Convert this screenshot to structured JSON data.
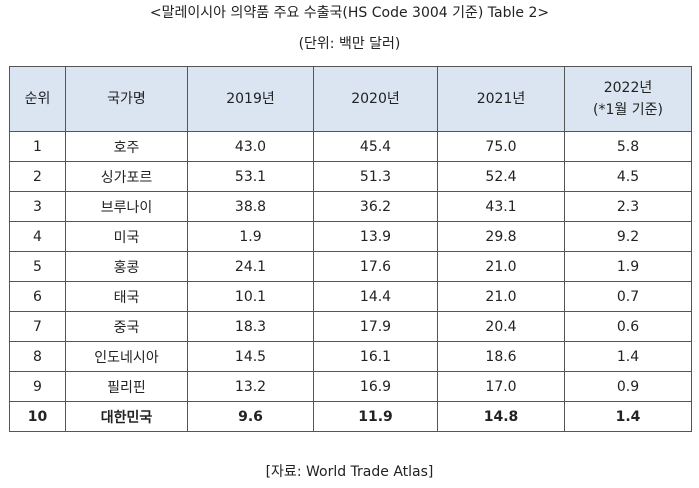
{
  "title": "<말레이시아 의약품 주요 수출국(HS Code 3004 기준) Table 2>",
  "unit": "(단위: 백만 달러)",
  "table": {
    "headers": {
      "rank": "순위",
      "country": "국가명",
      "y2019": "2019년",
      "y2020": "2020년",
      "y2021": "2021년",
      "y2022_line1": "2022년",
      "y2022_line2": "(*1월 기준)"
    },
    "rows": [
      {
        "rank": "1",
        "country": "호주",
        "y2019": "43.0",
        "y2020": "45.4",
        "y2021": "75.0",
        "y2022": "5.8"
      },
      {
        "rank": "2",
        "country": "싱가포르",
        "y2019": "53.1",
        "y2020": "51.3",
        "y2021": "52.4",
        "y2022": "4.5"
      },
      {
        "rank": "3",
        "country": "브루나이",
        "y2019": "38.8",
        "y2020": "36.2",
        "y2021": "43.1",
        "y2022": "2.3"
      },
      {
        "rank": "4",
        "country": "미국",
        "y2019": "1.9",
        "y2020": "13.9",
        "y2021": "29.8",
        "y2022": "9.2"
      },
      {
        "rank": "5",
        "country": "홍콩",
        "y2019": "24.1",
        "y2020": "17.6",
        "y2021": "21.0",
        "y2022": "1.9"
      },
      {
        "rank": "6",
        "country": "태국",
        "y2019": "10.1",
        "y2020": "14.4",
        "y2021": "21.0",
        "y2022": "0.7"
      },
      {
        "rank": "7",
        "country": "중국",
        "y2019": "18.3",
        "y2020": "17.9",
        "y2021": "20.4",
        "y2022": "0.6"
      },
      {
        "rank": "8",
        "country": "인도네시아",
        "y2019": "14.5",
        "y2020": "16.1",
        "y2021": "18.6",
        "y2022": "1.4"
      },
      {
        "rank": "9",
        "country": "필리핀",
        "y2019": "13.2",
        "y2020": "16.9",
        "y2021": "17.0",
        "y2022": "0.9"
      },
      {
        "rank": "10",
        "country": "대한민국",
        "y2019": "9.6",
        "y2020": "11.9",
        "y2021": "14.8",
        "y2022": "1.4"
      }
    ]
  },
  "source": "[자료: World Trade Atlas]"
}
